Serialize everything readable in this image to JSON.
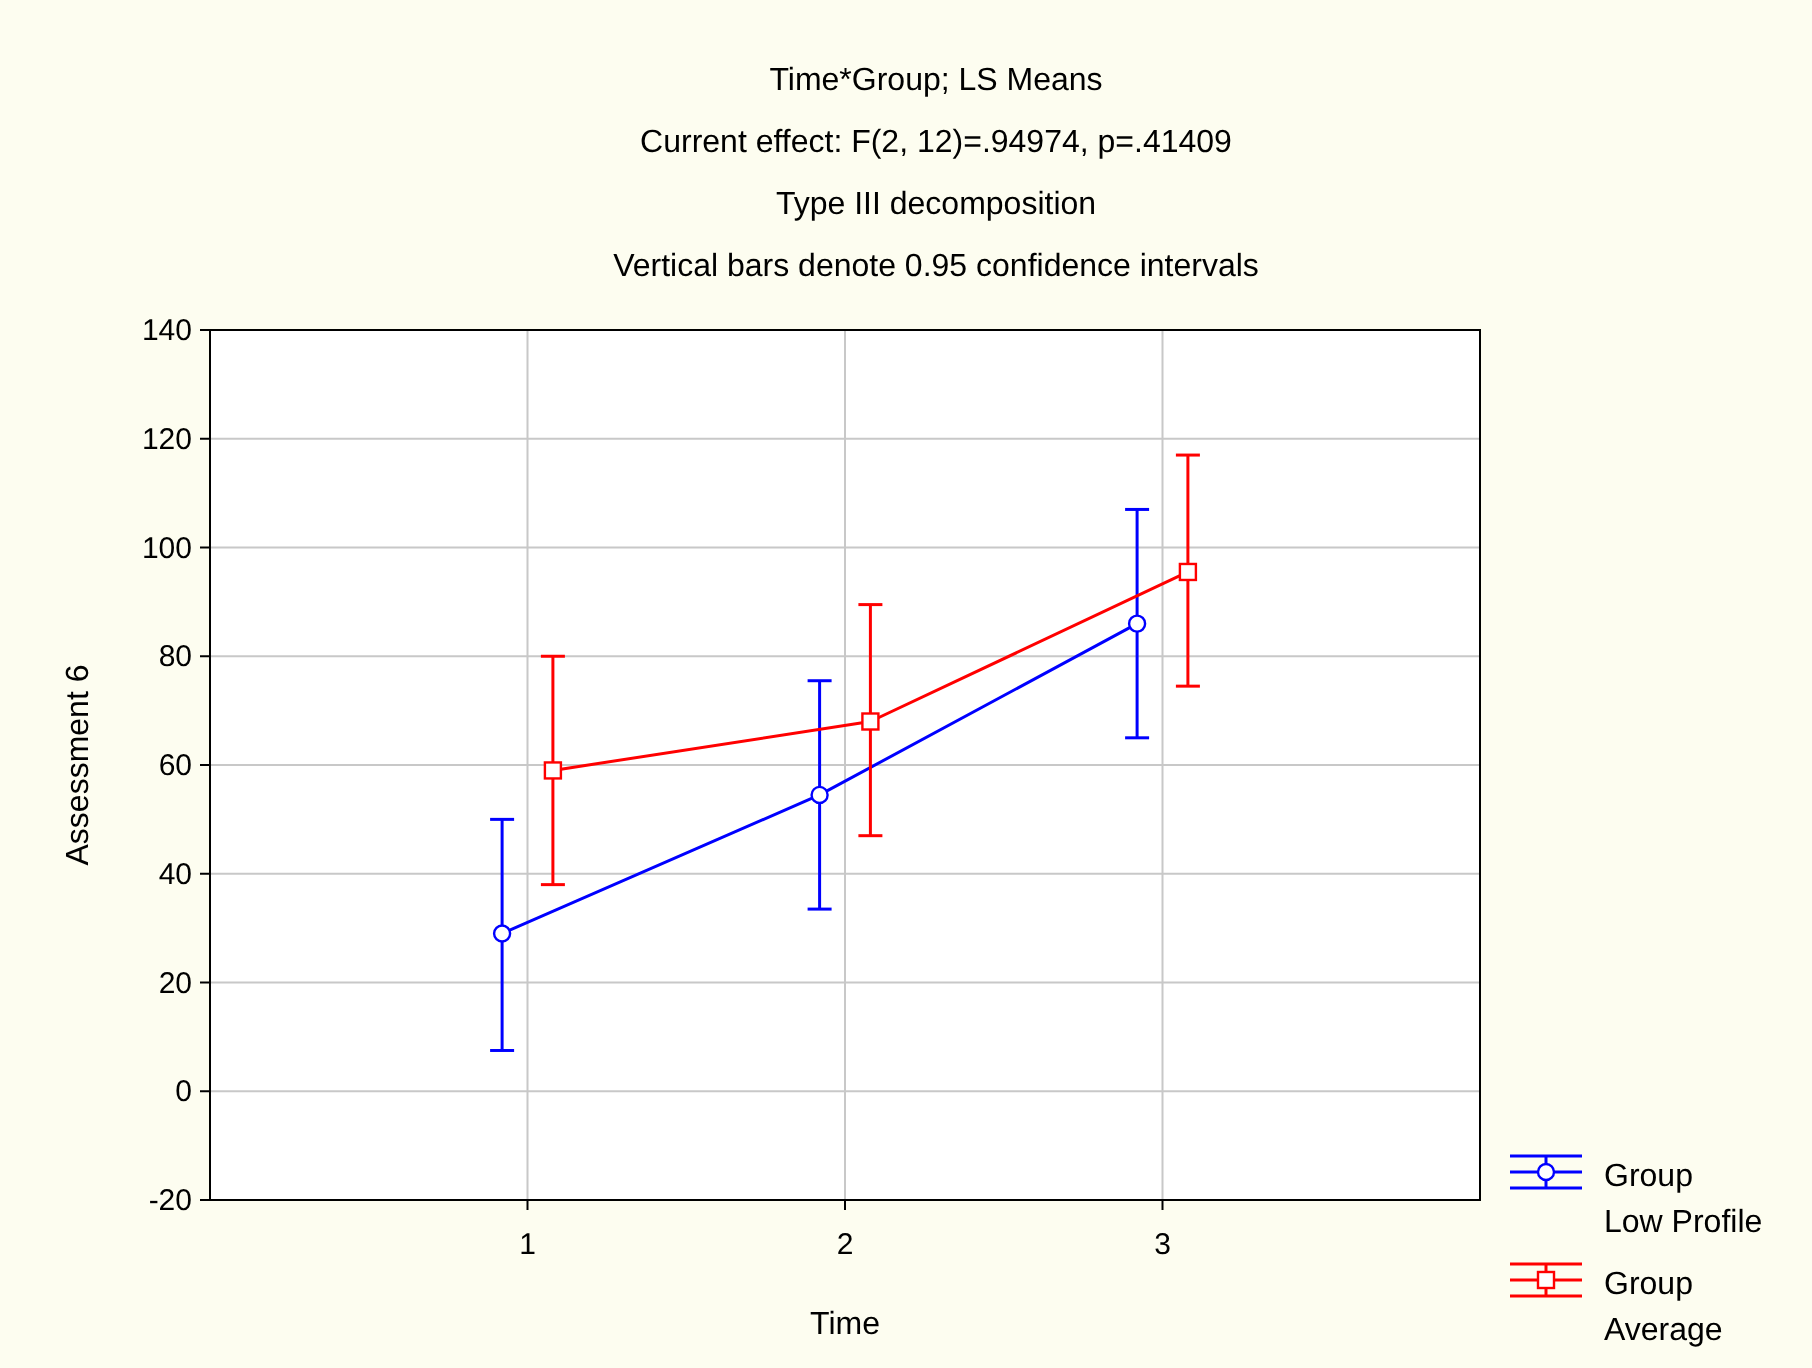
{
  "chart_data": {
    "type": "line",
    "title": "Time*Group; LS Means",
    "subtitle": "Current effect: F(2, 12)=.94974, p=.41409",
    "annotations": [
      "Type III decomposition",
      "Vertical bars denote 0.95 confidence intervals"
    ],
    "xlabel": "Time",
    "ylabel": "Assessment 6",
    "categories": [
      "1",
      "2",
      "3"
    ],
    "ylim": [
      -20,
      140
    ],
    "yticks": [
      -20,
      0,
      20,
      40,
      60,
      80,
      100,
      120,
      140
    ],
    "grid": true,
    "legend": "bottom right",
    "series": [
      {
        "name": "Group Low Profile",
        "color": "#0000ff",
        "marker": "circle",
        "values": [
          29,
          54.5,
          86
        ],
        "errors": [
          [
            7.5,
            50
          ],
          [
            33.5,
            75.5
          ],
          [
            65,
            107
          ]
        ]
      },
      {
        "name": "Group Average",
        "color": "#ff0000",
        "marker": "square",
        "values": [
          59,
          68,
          95.5
        ],
        "errors": [
          [
            38,
            80
          ],
          [
            47,
            89.5
          ],
          [
            74.5,
            117
          ]
        ]
      }
    ]
  }
}
